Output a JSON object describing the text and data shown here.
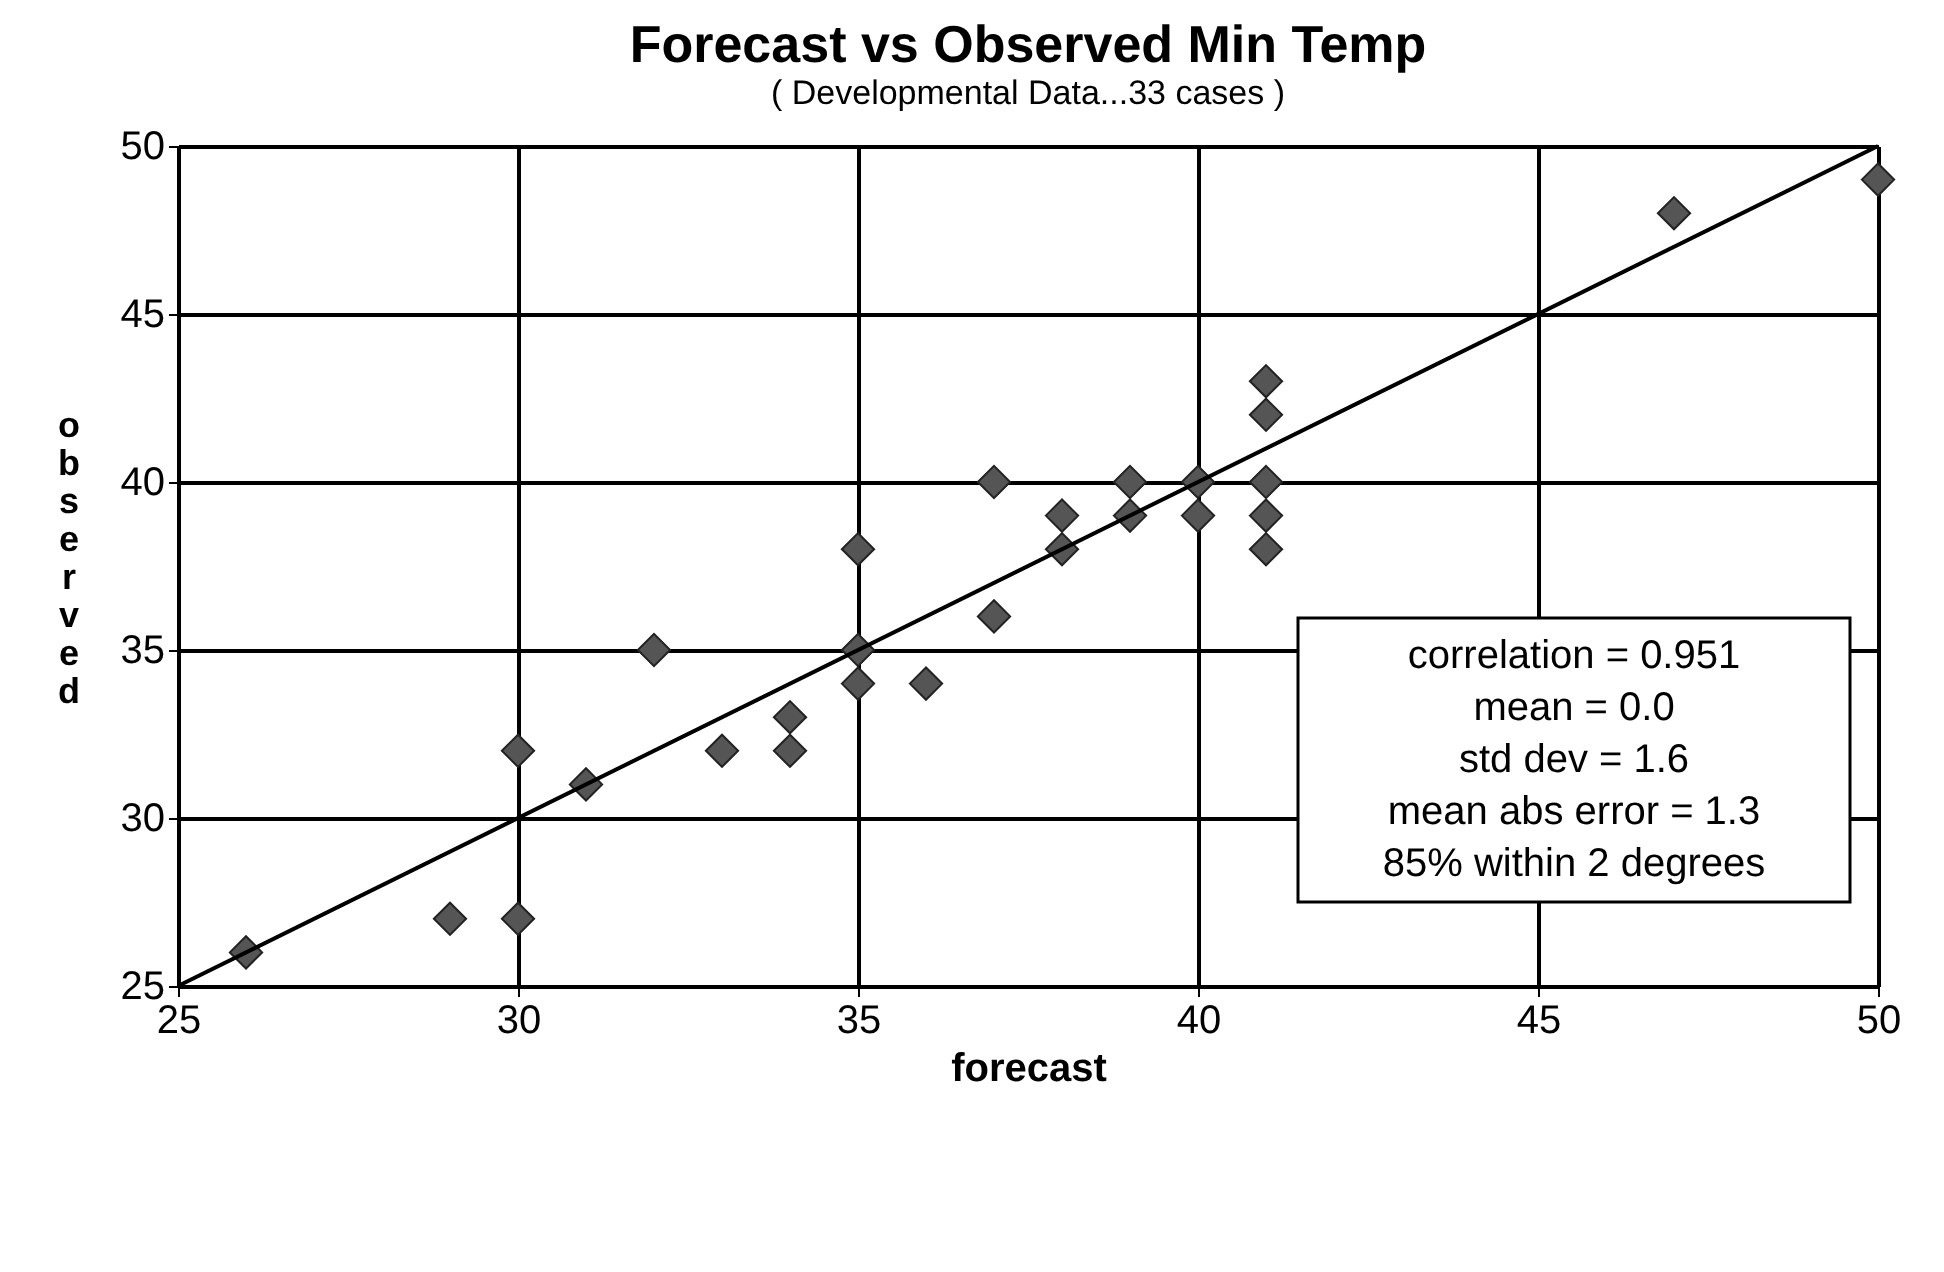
{
  "chart_data": {
    "type": "scatter",
    "title": "Forecast vs Observed Min Temp",
    "subtitle": "( Developmental Data...33 cases )",
    "xlabel": "forecast",
    "ylabel": "observed",
    "series": [
      {
        "type": "scatter",
        "marker": "diamond",
        "color": "#555555",
        "x": [
          26,
          29,
          30,
          30,
          31,
          32,
          33,
          34,
          34,
          35,
          35,
          35,
          36,
          37,
          37,
          38,
          38,
          39,
          39,
          40,
          40,
          41,
          41,
          41,
          41,
          41,
          47,
          50
        ],
        "values": [
          26,
          27,
          27,
          32,
          31,
          35,
          32,
          32,
          33,
          34,
          35,
          38,
          34,
          36,
          40,
          38,
          39,
          39,
          40,
          40,
          39,
          43,
          42,
          40,
          39,
          38,
          48,
          49
        ]
      },
      {
        "type": "line",
        "color": "#000000",
        "x": [
          25,
          50
        ],
        "values": [
          25,
          50
        ]
      }
    ],
    "annotations": [
      "correlation = 0.951",
      "mean = 0.0",
      "std dev = 1.6",
      "mean abs error = 1.3",
      "85% within 2 degrees"
    ],
    "xlim": [
      25,
      50
    ],
    "ylim": [
      25,
      50
    ],
    "xticks": [
      25,
      30,
      35,
      40,
      45,
      50
    ],
    "yticks": [
      25,
      30,
      35,
      40,
      45,
      50
    ],
    "grid": true
  }
}
